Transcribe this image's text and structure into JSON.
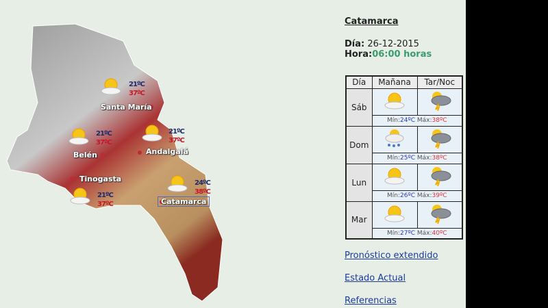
{
  "map": {
    "cities": [
      {
        "name": "Santa María",
        "min": "21ºC",
        "max": "37ºC",
        "icon": "sun-cloud-icon"
      },
      {
        "name": "Belén",
        "min": "21ºC",
        "max": "37ºC",
        "icon": "sun-cloud-icon"
      },
      {
        "name": "Andalgalá",
        "min": "21ºC",
        "max": "37ºC",
        "icon": "sun-cloud-icon"
      },
      {
        "name": "Tinogasta",
        "min": "21ºC",
        "max": "37ºC",
        "icon": "sun-cloud-icon"
      },
      {
        "name": "Catamarca",
        "min": "24ºC",
        "max": "38ºC",
        "icon": "sun-cloud-icon"
      }
    ]
  },
  "side": {
    "title": "Catamarca",
    "dia_label": "Día:",
    "dia": " 26-12-2015",
    "hora_label": "Hora:",
    "hora": "06:00 horas"
  },
  "table": {
    "headers": [
      "Día",
      "Mañana",
      "Tar/Noc"
    ],
    "min_label": "Mín:",
    "max_label": " Máx:",
    "rows": [
      {
        "day": "Sáb",
        "morning": "sun-cloud-icon",
        "afternoon": "storm-icon",
        "min": "24ºC",
        "max": "38ºC"
      },
      {
        "day": "Dom",
        "morning": "rain-sun-icon",
        "afternoon": "storm-icon",
        "min": "25ºC",
        "max": "38ºC"
      },
      {
        "day": "Lun",
        "morning": "sun-cloud-icon",
        "afternoon": "storm-icon",
        "min": "26ºC",
        "max": "39ºC"
      },
      {
        "day": "Mar",
        "morning": "sun-cloud-icon",
        "afternoon": "storm-icon",
        "min": "27ºC",
        "max": "40ºC"
      }
    ]
  },
  "links": [
    "Pronóstico extendido",
    "Estado Actual",
    "Referencias"
  ]
}
